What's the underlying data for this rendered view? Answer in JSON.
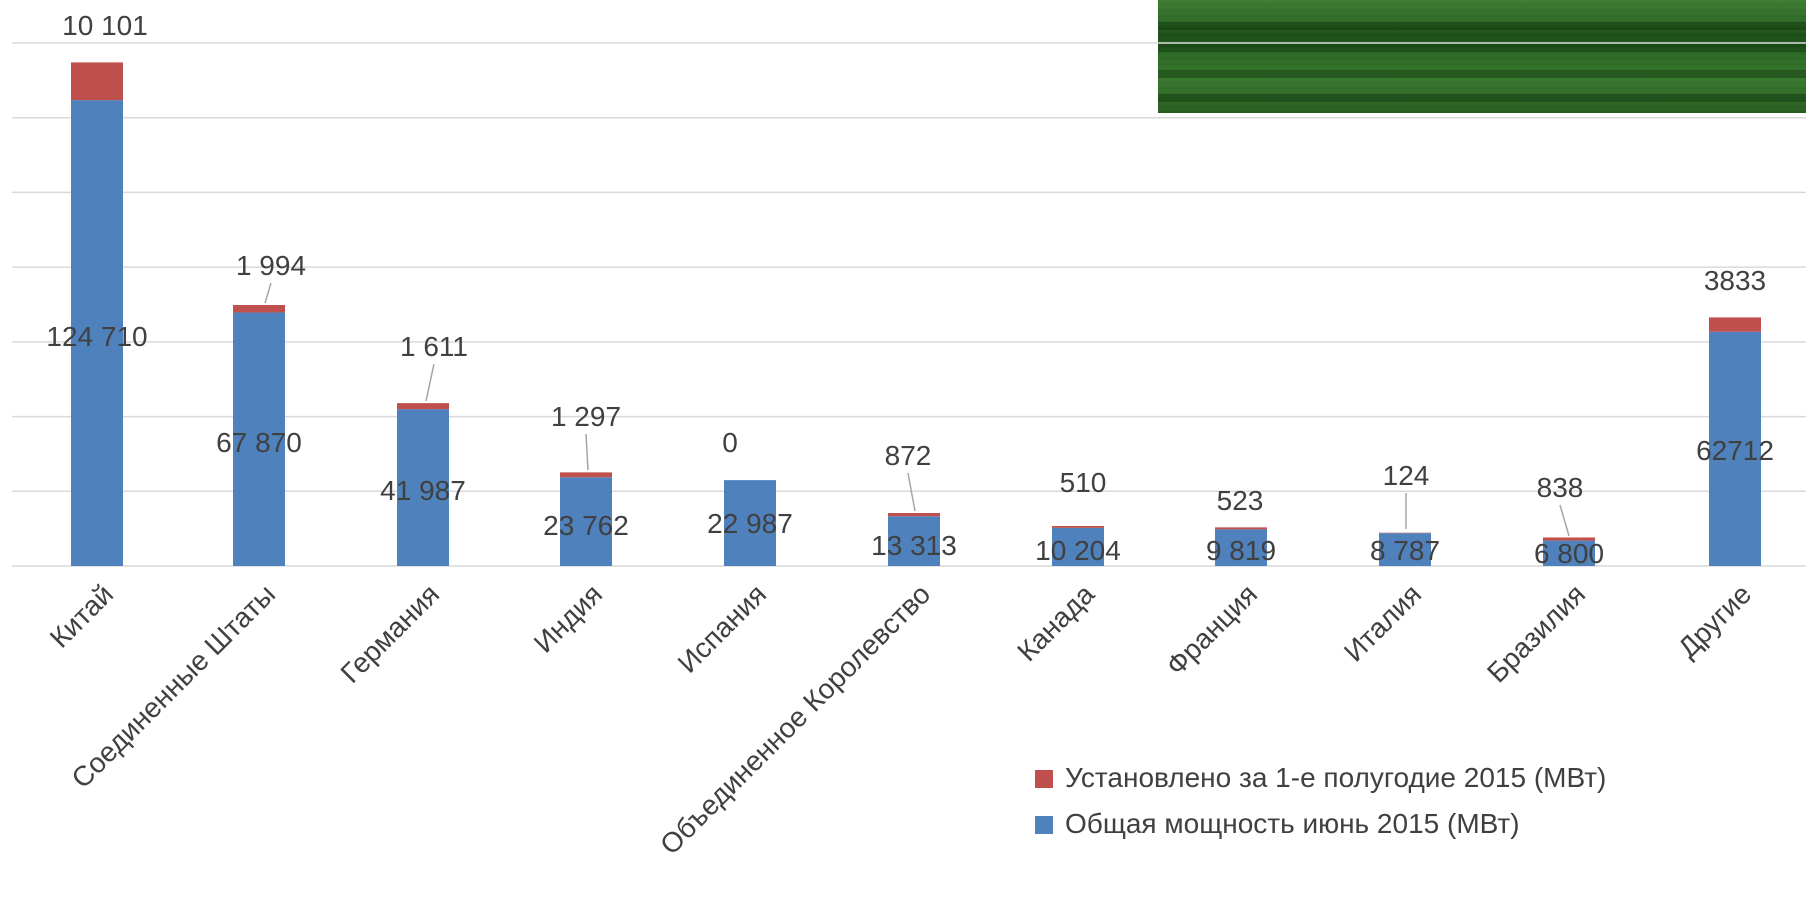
{
  "chart_data": {
    "type": "bar",
    "stacked": true,
    "title": "",
    "xlabel": "",
    "ylabel": "",
    "ylim": [
      0,
      140000
    ],
    "grid": true,
    "legend_position": "bottom-right",
    "categories": [
      "Китай",
      "Соединенные Штаты",
      "Германия",
      "Индия",
      "Испания",
      "Объединенное Королевство",
      "Канада",
      "Франция",
      "Италия",
      "Бразилия",
      "Другие"
    ],
    "series": [
      {
        "name": "Общая мощность июнь 2015 (МВт)",
        "color": "#4f81bd",
        "values": [
          124710,
          67870,
          41987,
          23762,
          22987,
          13313,
          10204,
          9819,
          8787,
          6800,
          62712
        ],
        "labels": [
          "124 710",
          "67 870",
          "41 987",
          "23 762",
          "22 987",
          "13 313",
          "10 204",
          "9 819",
          "8 787",
          "6 800",
          "62712"
        ]
      },
      {
        "name": "Установлено за 1-е полугодие 2015 (МВт)",
        "color": "#c0504d",
        "values": [
          10101,
          1994,
          1611,
          1297,
          0,
          872,
          510,
          523,
          124,
          838,
          3833
        ],
        "labels": [
          "10 101",
          "1 994",
          "1 611",
          "1 297",
          "0",
          "872",
          "510",
          "523",
          "124",
          "838",
          "3833"
        ]
      }
    ]
  }
}
